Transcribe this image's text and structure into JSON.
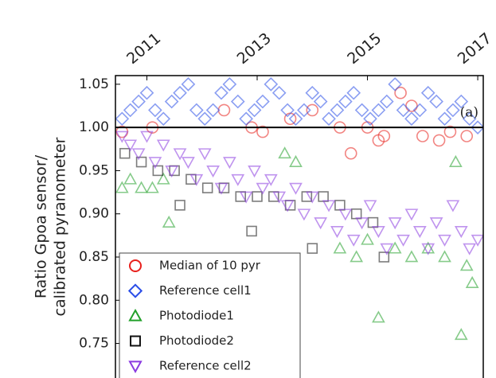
{
  "chart_data": {
    "type": "scatter",
    "ylabel": [
      "Ratio Gpoa sensor/",
      "calibrated pyranometer"
    ],
    "annotation": "(a)",
    "hline": 1.0,
    "xlim": [
      2010.43,
      2017.1
    ],
    "ylim": [
      0.71,
      1.06
    ],
    "xticks": [
      2011,
      2013,
      2015,
      2017
    ],
    "yticks": [
      {
        "value": 0.75,
        "label": "0.75"
      },
      {
        "value": 0.8,
        "label": "0.80"
      },
      {
        "value": 0.85,
        "label": "0.85"
      },
      {
        "value": 0.9,
        "label": "0.90"
      },
      {
        "value": 0.95,
        "label": "0.95"
      },
      {
        "value": 1.0,
        "label": "1.00"
      },
      {
        "value": 1.05,
        "label": "1.05"
      }
    ],
    "legend": "lower left",
    "series": [
      {
        "name": "Median of 10 pyr",
        "color": "#e8201c",
        "marker": "circle",
        "x": [
          2010.55,
          2011.1,
          2012.4,
          2012.9,
          2013.1,
          2013.6,
          2014.0,
          2014.5,
          2014.7,
          2015.0,
          2015.3,
          2015.6,
          2015.8,
          2016.0,
          2016.3,
          2016.5,
          2016.8,
          2015.2
        ],
        "values": [
          0.995,
          1.0,
          1.02,
          1.0,
          0.995,
          1.01,
          1.02,
          1.0,
          0.97,
          1.0,
          0.99,
          1.04,
          1.025,
          0.99,
          0.985,
          0.995,
          0.99,
          0.985
        ]
      },
      {
        "name": "Reference cell1",
        "color": "#2a4ee8",
        "marker": "diamond",
        "x": [
          2010.55,
          2010.7,
          2010.85,
          2011.0,
          2011.15,
          2011.3,
          2011.45,
          2011.6,
          2011.75,
          2011.9,
          2012.05,
          2012.2,
          2012.35,
          2012.5,
          2012.65,
          2012.8,
          2012.95,
          2013.1,
          2013.25,
          2013.4,
          2013.55,
          2013.7,
          2013.85,
          2014.0,
          2014.15,
          2014.3,
          2014.45,
          2014.6,
          2014.75,
          2014.9,
          2015.05,
          2015.2,
          2015.35,
          2015.5,
          2015.65,
          2015.8,
          2015.95,
          2016.1,
          2016.25,
          2016.4,
          2016.55,
          2016.7,
          2016.85,
          2017.0
        ],
        "values": [
          1.01,
          1.02,
          1.03,
          1.04,
          1.02,
          1.01,
          1.03,
          1.04,
          1.05,
          1.02,
          1.01,
          1.02,
          1.04,
          1.05,
          1.03,
          1.01,
          1.02,
          1.03,
          1.05,
          1.04,
          1.02,
          1.01,
          1.02,
          1.04,
          1.03,
          1.01,
          1.02,
          1.03,
          1.04,
          1.02,
          1.01,
          1.02,
          1.03,
          1.05,
          1.02,
          1.01,
          1.02,
          1.04,
          1.03,
          1.01,
          1.02,
          1.03,
          1.01,
          1.0
        ]
      },
      {
        "name": "Photodiode1",
        "color": "#22a02a",
        "marker": "triangle-up",
        "x": [
          2010.55,
          2010.7,
          2010.9,
          2011.1,
          2011.3,
          2011.4,
          2013.5,
          2013.7,
          2014.5,
          2014.8,
          2015.0,
          2015.2,
          2015.5,
          2015.8,
          2016.1,
          2016.4,
          2016.7,
          2016.9,
          2016.8,
          2016.6
        ],
        "values": [
          0.93,
          0.94,
          0.93,
          0.93,
          0.94,
          0.89,
          0.97,
          0.96,
          0.86,
          0.85,
          0.87,
          0.78,
          0.86,
          0.85,
          0.86,
          0.85,
          0.76,
          0.82,
          0.84,
          0.96
        ]
      },
      {
        "name": "Photodiode2",
        "color": "#111111",
        "marker": "square",
        "x": [
          2010.6,
          2010.9,
          2011.2,
          2011.5,
          2011.8,
          2012.1,
          2012.4,
          2012.7,
          2013.0,
          2013.3,
          2013.6,
          2013.9,
          2014.2,
          2014.5,
          2014.8,
          2015.1,
          2011.6,
          2012.9,
          2014.0,
          2015.3
        ],
        "values": [
          0.97,
          0.96,
          0.95,
          0.95,
          0.94,
          0.93,
          0.93,
          0.92,
          0.92,
          0.92,
          0.91,
          0.92,
          0.92,
          0.91,
          0.9,
          0.89,
          0.91,
          0.88,
          0.86,
          0.85
        ]
      },
      {
        "name": "Reference cell2",
        "color": "#8a3be0",
        "marker": "triangle-down",
        "x": [
          2010.55,
          2010.7,
          2010.85,
          2011.0,
          2011.15,
          2011.3,
          2011.45,
          2011.6,
          2011.75,
          2011.9,
          2012.05,
          2012.2,
          2012.35,
          2012.5,
          2012.65,
          2012.8,
          2012.95,
          2013.1,
          2013.25,
          2013.4,
          2013.55,
          2013.7,
          2013.85,
          2014.0,
          2014.15,
          2014.3,
          2014.45,
          2014.6,
          2014.75,
          2014.9,
          2015.05,
          2015.2,
          2015.35,
          2015.5,
          2015.65,
          2015.8,
          2015.95,
          2016.1,
          2016.25,
          2016.4,
          2016.55,
          2016.7,
          2016.85,
          2017.0
        ],
        "values": [
          0.99,
          0.98,
          0.97,
          0.99,
          0.96,
          0.98,
          0.95,
          0.97,
          0.96,
          0.94,
          0.97,
          0.95,
          0.93,
          0.96,
          0.94,
          0.92,
          0.95,
          0.93,
          0.94,
          0.92,
          0.91,
          0.93,
          0.9,
          0.92,
          0.89,
          0.91,
          0.88,
          0.9,
          0.87,
          0.89,
          0.91,
          0.88,
          0.86,
          0.89,
          0.87,
          0.9,
          0.88,
          0.86,
          0.89,
          0.87,
          0.91,
          0.88,
          0.86,
          0.87
        ]
      }
    ]
  }
}
